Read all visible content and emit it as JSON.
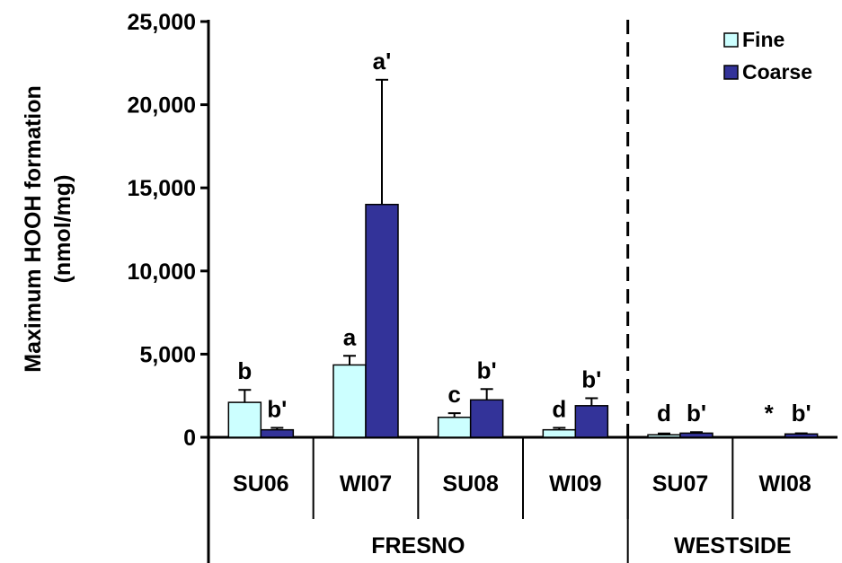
{
  "chart_data": {
    "type": "bar",
    "ylabel_line1": "Maximum HOOH formation",
    "ylabel_line2": "(nmol/mg)",
    "ylim": [
      0,
      25000
    ],
    "yticks": [
      0,
      5000,
      10000,
      15000,
      20000,
      25000
    ],
    "ytick_labels": [
      "0",
      "5,000",
      "10,000",
      "15,000",
      "20,000",
      "25,000"
    ],
    "categories": [
      "SU06",
      "WI07",
      "SU08",
      "WI09",
      "SU07",
      "WI08"
    ],
    "groups": [
      {
        "label": "FRESNO",
        "categories": [
          "SU06",
          "WI07",
          "SU08",
          "WI09"
        ]
      },
      {
        "label": "WESTSIDE",
        "categories": [
          "SU07",
          "WI08"
        ]
      }
    ],
    "series": [
      {
        "name": "Fine",
        "color": "#ccffff",
        "values": [
          2100,
          4350,
          1200,
          450,
          150,
          null
        ],
        "errors": [
          750,
          550,
          250,
          120,
          80,
          null
        ],
        "labels": [
          "b",
          "a",
          "c",
          "d",
          "d",
          "*"
        ]
      },
      {
        "name": "Coarse",
        "color": "#333399",
        "values": [
          450,
          14000,
          2250,
          1900,
          250,
          200
        ],
        "errors": [
          120,
          7500,
          650,
          450,
          60,
          40
        ],
        "labels": [
          "b'",
          "a'",
          "b'",
          "b'",
          "b'",
          "b'"
        ]
      }
    ],
    "legend": "top-right",
    "grid": false,
    "divider": "dashed vertical line between FRESNO and WESTSIDE"
  }
}
